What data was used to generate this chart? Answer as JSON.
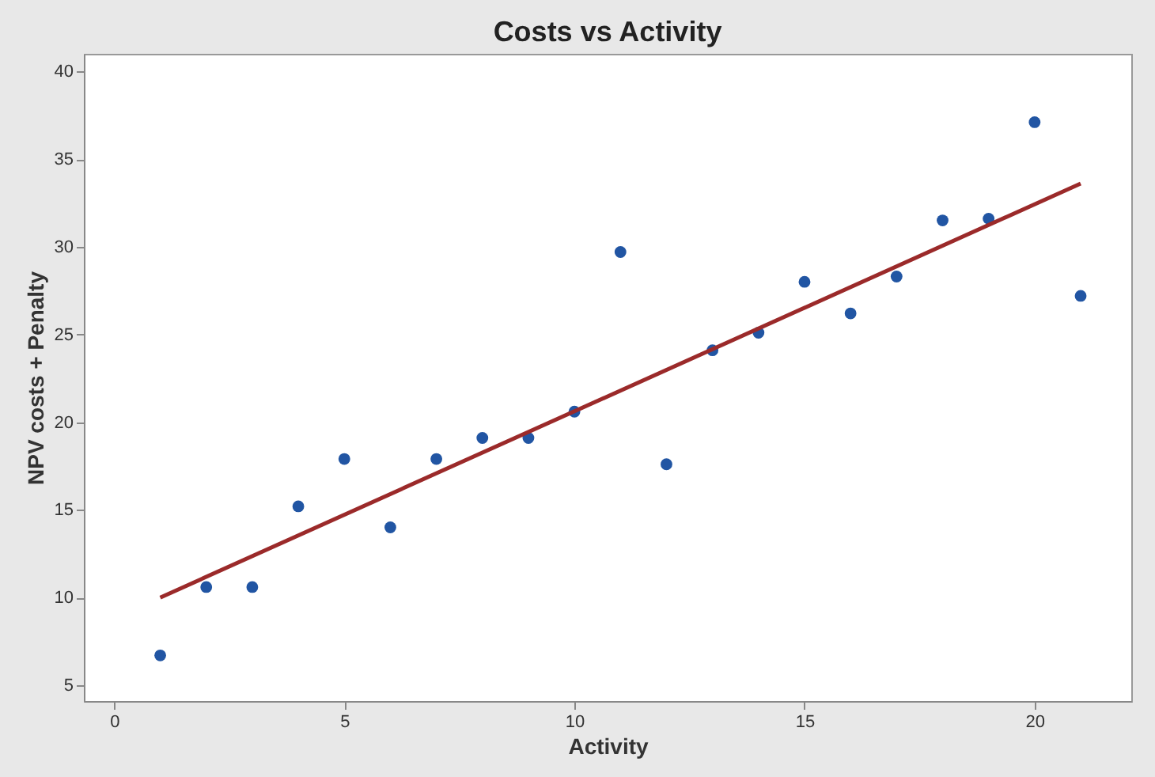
{
  "chart_data": {
    "type": "scatter",
    "title": "Costs vs Activity",
    "xlabel": "Activity",
    "ylabel": "NPV costs + Penalty",
    "xlim": [
      -0.66,
      22.1
    ],
    "ylim": [
      4.1,
      41
    ],
    "xticks": [
      0,
      5,
      10,
      15,
      20
    ],
    "yticks": [
      5,
      10,
      15,
      20,
      25,
      30,
      35,
      40
    ],
    "grid": false,
    "marker": "circle",
    "series": [
      {
        "color": "#2155a3",
        "x": [
          1,
          2,
          3,
          4,
          5,
          6,
          7,
          8,
          9,
          10,
          11,
          12,
          13,
          14,
          15,
          16,
          17,
          18,
          19,
          20,
          21
        ],
        "values": [
          6.7,
          10.6,
          10.6,
          15.2,
          17.9,
          14.0,
          17.9,
          19.1,
          19.1,
          20.6,
          29.7,
          17.6,
          24.1,
          25.1,
          28.0,
          26.2,
          28.3,
          31.5,
          31.6,
          37.1,
          27.2
        ]
      },
      {
        "type": "line",
        "marker": "none",
        "color": "#9b2a2a",
        "x": [
          1,
          21
        ],
        "values": [
          10.0,
          33.6
        ]
      }
    ]
  }
}
